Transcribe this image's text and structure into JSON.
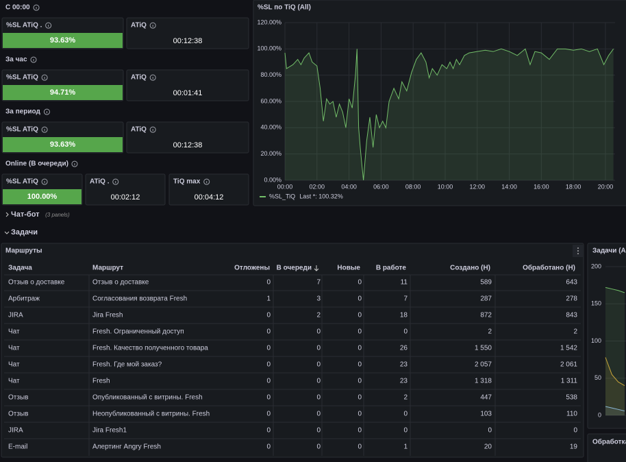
{
  "sections": [
    {
      "title": "С 00:00",
      "panels": [
        {
          "title": "%SL ATiQ .",
          "value": "93.63%"
        },
        {
          "title": "ATiQ",
          "value": "00:12:38"
        }
      ]
    },
    {
      "title": "За час",
      "panels": [
        {
          "title": "%SL ATiQ",
          "value": "94.71%"
        },
        {
          "title": "ATiQ",
          "value": "00:01:41"
        }
      ]
    },
    {
      "title": "За период",
      "panels": [
        {
          "title": "%SL ATiQ",
          "value": "93.63%"
        },
        {
          "title": "ATiQ",
          "value": "00:12:38"
        }
      ]
    },
    {
      "title": "Online (В очереди)",
      "panels": [
        {
          "title": "%SL ATiQ",
          "value": "100.00%"
        },
        {
          "title": "ATiQ .",
          "value": "00:02:12"
        },
        {
          "title": "TiQ max",
          "value": "00:04:12"
        }
      ]
    }
  ],
  "chart_data": [
    {
      "type": "line",
      "title": "%SL по TiQ (All)",
      "x": [
        0,
        0.1,
        0.5,
        0.8,
        1.0,
        1.2,
        1.5,
        1.7,
        2.0,
        2.2,
        2.4,
        2.6,
        2.8,
        3.0,
        3.2,
        3.4,
        3.6,
        3.8,
        4.0,
        4.2,
        4.4,
        4.5,
        4.6,
        4.7,
        4.8,
        4.9,
        5.1,
        5.3,
        5.5,
        5.7,
        5.9,
        6.1,
        6.3,
        6.5,
        6.8,
        7.1,
        7.3,
        7.6,
        7.9,
        8.2,
        8.5,
        8.8,
        9.0,
        9.2,
        9.5,
        9.8,
        10.1,
        10.3,
        10.5,
        10.7,
        10.9,
        11.2,
        11.5,
        12.0,
        12.5,
        13.0,
        13.5,
        14.0,
        14.5,
        15.0,
        15.3,
        15.6,
        16.0,
        16.5,
        17.0,
        17.5,
        18.0,
        18.5,
        19.0,
        19.5,
        19.9,
        20.2,
        20.5
      ],
      "series": [
        {
          "name": "%SL_TiQ",
          "color": "#73bf69",
          "values": [
            97,
            85,
            88,
            92,
            88,
            93,
            97,
            90,
            87,
            70,
            45,
            62,
            58,
            60,
            48,
            58,
            52,
            40,
            62,
            55,
            80,
            100,
            40,
            25,
            12,
            0,
            30,
            48,
            25,
            50,
            40,
            45,
            40,
            60,
            70,
            62,
            75,
            68,
            82,
            92,
            97,
            90,
            78,
            85,
            80,
            88,
            85,
            90,
            85,
            92,
            88,
            95,
            97,
            98,
            99,
            98,
            100,
            98,
            95,
            100,
            88,
            98,
            97,
            92,
            100,
            100,
            99,
            100,
            98,
            100,
            88,
            95,
            100
          ]
        }
      ],
      "xlim": [
        0,
        20.6
      ],
      "xticks": [
        {
          "value": 0,
          "label": "00:00"
        },
        {
          "value": 2,
          "label": "02:00"
        },
        {
          "value": 4,
          "label": "04:00"
        },
        {
          "value": 6,
          "label": "06:00"
        },
        {
          "value": 8,
          "label": "08:00"
        },
        {
          "value": 10,
          "label": "10:00"
        },
        {
          "value": 12,
          "label": "12:00"
        },
        {
          "value": 14,
          "label": "14:00"
        },
        {
          "value": 16,
          "label": "16:00"
        },
        {
          "value": 18,
          "label": "18:00"
        },
        {
          "value": 20,
          "label": "20:00"
        }
      ],
      "ylim": [
        0,
        120
      ],
      "yticks": [
        {
          "value": 0,
          "label": "0.00%"
        },
        {
          "value": 20,
          "label": "20.00%"
        },
        {
          "value": 40,
          "label": "40.00%"
        },
        {
          "value": 60,
          "label": "60.00%"
        },
        {
          "value": 80,
          "label": "80.00%"
        },
        {
          "value": 100,
          "label": "100.00%"
        },
        {
          "value": 120,
          "label": "120.00%"
        }
      ],
      "grid": true,
      "legend_stat": "Last *: 100.32%"
    },
    {
      "type": "line",
      "title": "Задачи (Al",
      "categories": [
        null,
        null,
        null,
        null
      ],
      "series": [
        {
          "color": "#73bf69",
          "values": [
            172,
            170,
            168,
            165
          ]
        },
        {
          "color": "#c8a53a",
          "values": [
            78,
            55,
            45,
            40
          ]
        },
        {
          "color": "#8ab8d8",
          "values": [
            12,
            10,
            8,
            6
          ]
        }
      ],
      "ylim": [
        0,
        200
      ],
      "yticks": [
        0,
        50,
        100,
        150,
        200
      ],
      "grid": true
    }
  ],
  "rows": [
    {
      "title": "Чат-бот",
      "note": "(3 panels)"
    },
    {
      "title": "Задачи"
    }
  ],
  "table": {
    "title": "Маршруты",
    "columns": [
      "Задача",
      "Маршрут",
      "Отложены",
      "В очереди",
      "Новые",
      "В работе",
      "Создано (Н)",
      "Обработано (Н)"
    ],
    "rows": [
      [
        "Отзыв о доставке",
        "Отзыв о доставке",
        0,
        7,
        0,
        11,
        589,
        643
      ],
      [
        "Арбитраж",
        "Согласования возврата Fresh",
        1,
        3,
        0,
        7,
        287,
        278
      ],
      [
        "JIRA",
        "Jira Fresh",
        0,
        2,
        0,
        18,
        872,
        843
      ],
      [
        "Чат",
        "Fresh. Ограниченный доступ",
        0,
        0,
        0,
        0,
        2,
        2
      ],
      [
        "Чат",
        "Fresh. Качество полученного товара",
        0,
        0,
        0,
        26,
        "1 550",
        "1 542"
      ],
      [
        "Чат",
        "Fresh. Где мой заказ?",
        0,
        0,
        0,
        23,
        "2 057",
        "2 061"
      ],
      [
        "Чат",
        "Fresh",
        0,
        0,
        0,
        23,
        "1 318",
        "1 311"
      ],
      [
        "Отзыв",
        "Опубликованный с витрины. Fresh",
        0,
        0,
        0,
        2,
        447,
        538
      ],
      [
        "Отзыв",
        "Неопубликованный с витрины. Fresh",
        0,
        0,
        0,
        0,
        103,
        110
      ],
      [
        "JIRA",
        "Jira Fresh1",
        0,
        0,
        0,
        0,
        0,
        0
      ],
      [
        "E-mail",
        "Алертинг Angry Fresh",
        0,
        0,
        0,
        1,
        20,
        19
      ]
    ]
  },
  "bottom_panel": {
    "title": "Обработка"
  }
}
